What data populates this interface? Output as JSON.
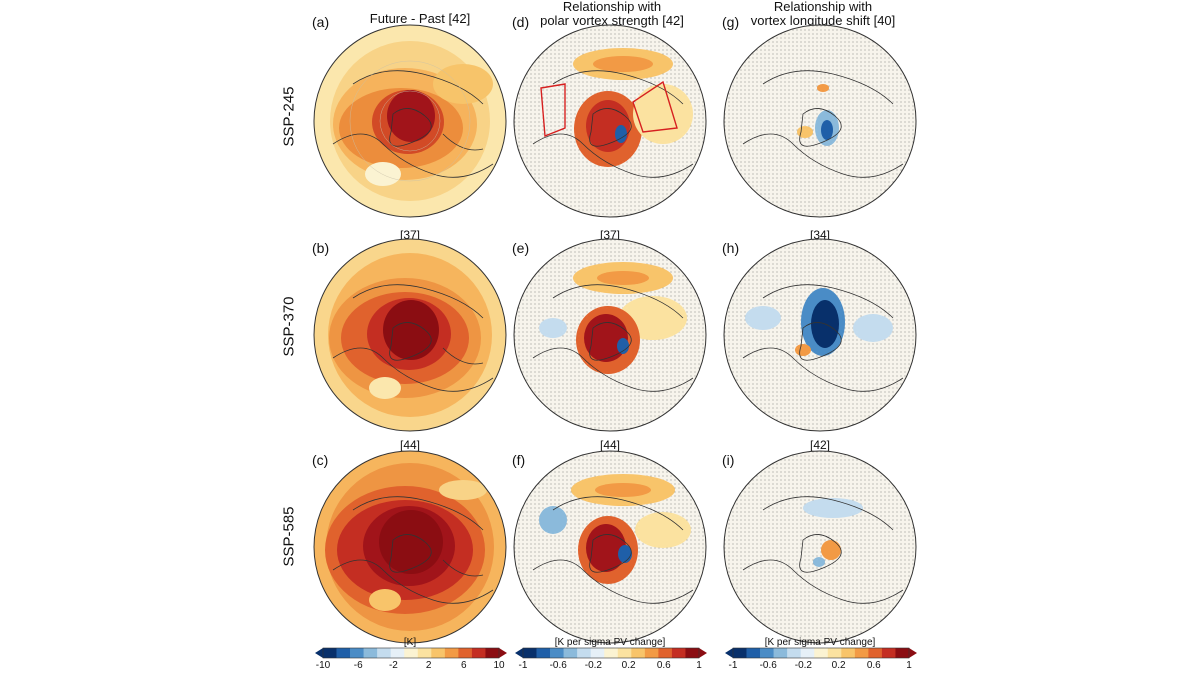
{
  "columns": [
    {
      "title": "Future - Past [42]",
      "lines": [
        "Future - Past [42]"
      ]
    },
    {
      "title": "Relationship with polar vortex strength [42]",
      "lines": [
        "Relationship with",
        "polar vortex strength [42]"
      ]
    },
    {
      "title": "Relationship with vortex longitude shift [40]",
      "lines": [
        "Relationship with",
        "vortex longitude shift [40]"
      ]
    }
  ],
  "rows": [
    "SSP-245",
    "SSP-370",
    "SSP-585"
  ],
  "panels": [
    {
      "id": "a",
      "label": "(a)",
      "count": ""
    },
    {
      "id": "d",
      "label": "(d)",
      "count": ""
    },
    {
      "id": "g",
      "label": "(g)",
      "count": ""
    },
    {
      "id": "b",
      "label": "(b)",
      "count": "[37]"
    },
    {
      "id": "e",
      "label": "(e)",
      "count": "[37]"
    },
    {
      "id": "h",
      "label": "(h)",
      "count": "[34]"
    },
    {
      "id": "c",
      "label": "(c)",
      "count": "[44]"
    },
    {
      "id": "f",
      "label": "(f)",
      "count": "[44]"
    },
    {
      "id": "i",
      "label": "(i)",
      "count": "[42]"
    }
  ],
  "colorbars": [
    {
      "unit": "[K]",
      "ticks": [
        "-10",
        "-6",
        "-2",
        "2",
        "6",
        "10"
      ]
    },
    {
      "unit": "[K per sigma PV change]",
      "ticks": [
        "-1",
        "-0.6",
        "-0.2",
        "0.2",
        "0.6",
        "1"
      ]
    },
    {
      "unit": "[K per sigma PV change]",
      "ticks": [
        "-1",
        "-0.6",
        "-0.2",
        "0.2",
        "0.6",
        "1"
      ]
    }
  ],
  "colors": {
    "scale": [
      "#08306b",
      "#1f5fa8",
      "#4a8cc6",
      "#8bbadb",
      "#c4dcee",
      "#e6f0f7",
      "#fbf3d2",
      "#fbe2a0",
      "#f8c46a",
      "#f29a45",
      "#e0622d",
      "#c42e22",
      "#8b0d12"
    ],
    "land_outline": "#333333",
    "box": "#d62020"
  }
}
